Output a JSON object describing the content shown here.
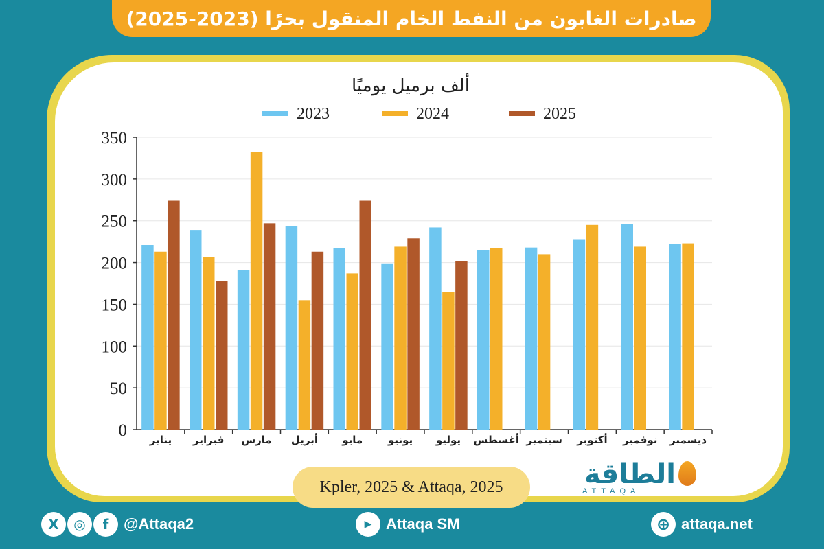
{
  "header": {
    "title": "صادرات الغابون من النفط الخام المنقول بحرًا (2023-2025)"
  },
  "chart_data": {
    "type": "bar",
    "unit_label": "ألف برميل يوميًا",
    "categories": [
      "يناير",
      "فبراير",
      "مارس",
      "أبريل",
      "مايو",
      "يونيو",
      "يوليو",
      "أغسطس",
      "سبتمبر",
      "أكتوبر",
      "نوفمبر",
      "ديسمبر"
    ],
    "series": [
      {
        "name": "2023",
        "color": "#6ec6f0",
        "values": [
          221,
          239,
          191,
          244,
          217,
          199,
          242,
          215,
          218,
          228,
          246,
          222
        ]
      },
      {
        "name": "2024",
        "color": "#f4b02a",
        "values": [
          213,
          207,
          332,
          155,
          187,
          219,
          165,
          217,
          210,
          245,
          219,
          223
        ]
      },
      {
        "name": "2025",
        "color": "#b0582a",
        "values": [
          274,
          178,
          247,
          213,
          274,
          229,
          202,
          null,
          null,
          null,
          null,
          null
        ]
      }
    ],
    "ylim": [
      0,
      350
    ],
    "yticks": [
      0,
      50,
      100,
      150,
      200,
      250,
      300,
      350
    ],
    "grid": true,
    "legend_position": "top"
  },
  "source": "Kpler, 2025 & Attaqa, 2025",
  "logo": {
    "text": "الطاقة",
    "sub": "ATTAQA"
  },
  "footer": {
    "social_handle": "@Attaqa2",
    "youtube": "Attaqa SM",
    "website": "attaqa.net",
    "icons": {
      "x": "X",
      "instagram": "◎",
      "facebook": "f",
      "youtube": "▶",
      "globe": "⊕"
    }
  }
}
